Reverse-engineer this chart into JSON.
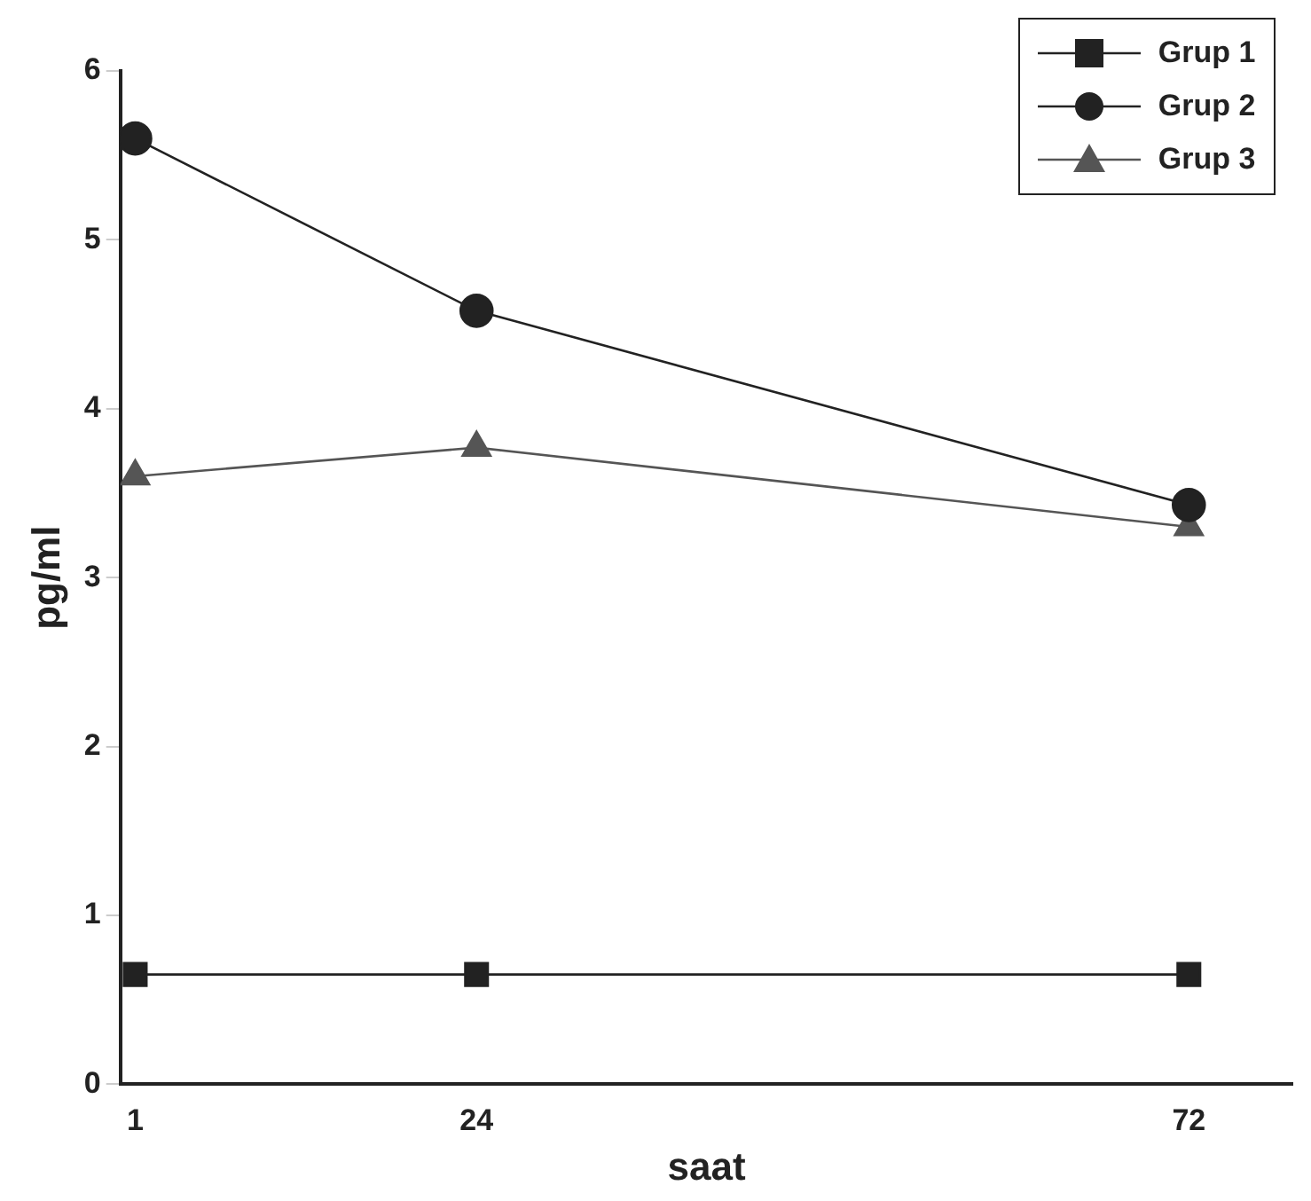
{
  "chart_data": {
    "type": "line",
    "xlabel": "saat",
    "ylabel": "pg/ml",
    "x": [
      1,
      24,
      72
    ],
    "xlim": [
      0,
      79
    ],
    "xticks": [
      1,
      24,
      72
    ],
    "ylim": [
      0,
      6
    ],
    "yticks": [
      0,
      1,
      2,
      3,
      4,
      5,
      6
    ],
    "grid": false,
    "legend": "top right",
    "line_style": "solid",
    "series": [
      {
        "name": "Grup 1",
        "color": "#222222",
        "marker": "square",
        "values": [
          0.65,
          0.65,
          0.65
        ]
      },
      {
        "name": "Grup 2",
        "color": "#222222",
        "marker": "circle",
        "values": [
          5.6,
          4.58,
          3.43
        ]
      },
      {
        "name": "Grup 3",
        "color": "#555555",
        "marker": "triangle",
        "values": [
          3.6,
          3.77,
          3.3
        ]
      }
    ]
  }
}
